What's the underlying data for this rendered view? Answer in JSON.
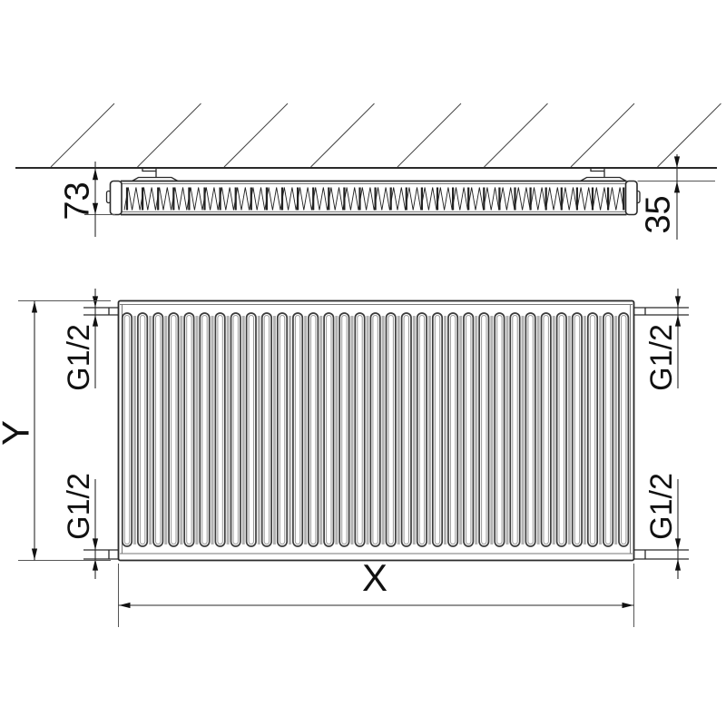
{
  "drawing": {
    "title": "panel radiator dimensional drawing",
    "labels": {
      "depth": "73",
      "wall_distance": "35",
      "height": "Y",
      "width": "X",
      "connection": "G1/2"
    },
    "side_view": {
      "hatch_line_count": 8,
      "bracket_count": 2,
      "zigzag_fin_band": true
    },
    "front_view": {
      "fin_count": 33,
      "gap_shade_count": 32,
      "connection_count": 4
    },
    "colors": {
      "line": "#2a2a2a",
      "shade": "#b2b2b2",
      "background": "#ffffff"
    }
  }
}
